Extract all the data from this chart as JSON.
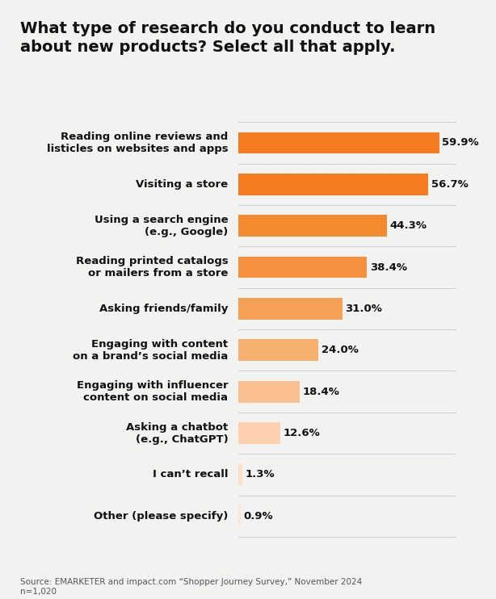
{
  "title": "What type of research do you conduct to learn\nabout new products? Select all that apply.",
  "categories": [
    "Reading online reviews and\nlisticles on websites and apps",
    "Visiting a store",
    "Using a search engine\n(e.g., Google)",
    "Reading printed catalogs\nor mailers from a store",
    "Asking friends/family",
    "Engaging with content\non a brand’s social media",
    "Engaging with influencer\ncontent on social media",
    "Asking a chatbot\n(e.g., ChatGPT)",
    "I can’t recall",
    "Other (please specify)"
  ],
  "values": [
    59.9,
    56.7,
    44.3,
    38.4,
    31.0,
    24.0,
    18.4,
    12.6,
    1.3,
    0.9
  ],
  "bar_colors": [
    "#F47B20",
    "#F47B20",
    "#F48A30",
    "#F49040",
    "#F5A055",
    "#F8B070",
    "#FABF90",
    "#FDD0B0",
    "#FDE0CC",
    "#FDE8D8"
  ],
  "source_text": "Source: EMARKETER and impact.com “Shopper Journey Survey,” November 2024\nn=1,020",
  "background_color": "#F2F2F0",
  "max_value": 65,
  "label_fontsize": 9.5,
  "title_fontsize": 14,
  "value_fontsize": 9.5,
  "source_fontsize": 7.5,
  "bar_height": 0.52,
  "separator_color": "#CCCCCC",
  "text_color": "#111111",
  "value_color": "#111111",
  "source_color": "#555555"
}
